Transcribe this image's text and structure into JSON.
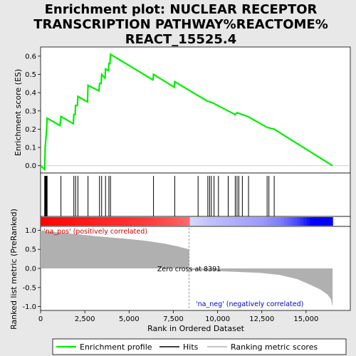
{
  "title_lines": [
    "Enrichment plot: NUCLEAR RECEPTOR",
    "TRANSCRIPTION PATHWAY%REACTOME%",
    "REACT_15525.4"
  ],
  "colors": {
    "profile": "#00ee00",
    "hits": "#000000",
    "metric": "#b0b0b0",
    "pos_label": "#cc0000",
    "neg_label": "#0000cc",
    "zero_line": "#888888"
  },
  "chart_data": [
    {
      "type": "line",
      "name": "enrichment-profile",
      "ylabel": "Enrichment score (ES)",
      "xlim": [
        0,
        17500
      ],
      "ylim": [
        -0.04,
        0.65
      ],
      "yticks": [
        0.0,
        0.1,
        0.2,
        0.3,
        0.4,
        0.5,
        0.6
      ],
      "grid": false,
      "points": [
        [
          0,
          0.0
        ],
        [
          230,
          -0.02
        ],
        [
          260,
          0.1
        ],
        [
          300,
          0.15
        ],
        [
          340,
          0.2
        ],
        [
          370,
          0.26
        ],
        [
          1100,
          0.22
        ],
        [
          1150,
          0.27
        ],
        [
          1850,
          0.23
        ],
        [
          1880,
          0.28
        ],
        [
          1950,
          0.28
        ],
        [
          1980,
          0.33
        ],
        [
          2080,
          0.33
        ],
        [
          2110,
          0.38
        ],
        [
          2650,
          0.35
        ],
        [
          2680,
          0.44
        ],
        [
          3300,
          0.41
        ],
        [
          3330,
          0.45
        ],
        [
          3420,
          0.45
        ],
        [
          3450,
          0.5
        ],
        [
          3640,
          0.48
        ],
        [
          3670,
          0.53
        ],
        [
          3840,
          0.52
        ],
        [
          3860,
          0.56
        ],
        [
          3920,
          0.56
        ],
        [
          3950,
          0.61
        ],
        [
          6350,
          0.47
        ],
        [
          6380,
          0.5
        ],
        [
          7550,
          0.43
        ],
        [
          7580,
          0.46
        ],
        [
          9400,
          0.355
        ],
        [
          9700,
          0.345
        ],
        [
          10600,
          0.3
        ],
        [
          11000,
          0.28
        ],
        [
          11100,
          0.29
        ],
        [
          11700,
          0.27
        ],
        [
          12800,
          0.21
        ],
        [
          13200,
          0.2
        ],
        [
          16500,
          0.0
        ]
      ]
    },
    {
      "type": "table",
      "name": "hits",
      "x": [
        230,
        260,
        300,
        340,
        370,
        1150,
        1880,
        1980,
        2110,
        2680,
        3330,
        3450,
        3670,
        3860,
        3950,
        6380,
        7580,
        8900,
        9450,
        9550,
        9650,
        9800,
        10050,
        10600,
        11000,
        11100,
        11200,
        11400,
        11750,
        12800,
        12900,
        13200
      ]
    },
    {
      "type": "area",
      "name": "ranked-list-metric",
      "ylabel": "Ranked list metric (PreRanked)",
      "xlabel": "Rank in Ordered Dataset",
      "xlim": [
        0,
        17500
      ],
      "ylim": [
        -1.1,
        1.1
      ],
      "xticks": [
        0,
        2500,
        5000,
        7500,
        10000,
        12500,
        15000
      ],
      "yticks": [
        -1.0,
        -0.5,
        0.0,
        0.5,
        1.0
      ],
      "points": [
        [
          0,
          1.0
        ],
        [
          400,
          0.97
        ],
        [
          1000,
          0.94
        ],
        [
          2000,
          0.9
        ],
        [
          3000,
          0.85
        ],
        [
          4000,
          0.81
        ],
        [
          5000,
          0.77
        ],
        [
          6000,
          0.72
        ],
        [
          7000,
          0.65
        ],
        [
          7800,
          0.57
        ],
        [
          8391,
          0.5
        ],
        [
          8392,
          0.0
        ],
        [
          8400,
          -0.03
        ],
        [
          9500,
          -0.06
        ],
        [
          11000,
          -0.09
        ],
        [
          12500,
          -0.12
        ],
        [
          13500,
          -0.17
        ],
        [
          14500,
          -0.28
        ],
        [
          15200,
          -0.42
        ],
        [
          15800,
          -0.55
        ],
        [
          16200,
          -0.68
        ],
        [
          16400,
          -0.8
        ],
        [
          16500,
          -1.0
        ]
      ],
      "zero_cross": 8391,
      "annotations": {
        "zero_cross": "Zero cross at 8391",
        "pos": "'na_pos' (positively correlated)",
        "neg": "'na_neg' (negatively correlated)"
      }
    }
  ],
  "legend": {
    "items": [
      {
        "label": "Enrichment profile",
        "color": "#00ee00"
      },
      {
        "label": "Hits",
        "color": "#000000"
      },
      {
        "label": "Ranking metric scores",
        "color": "#b0b0b0"
      }
    ]
  }
}
